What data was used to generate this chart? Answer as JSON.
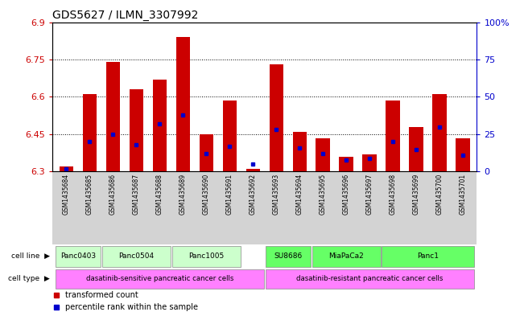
{
  "title": "GDS5627 / ILMN_3307992",
  "samples": [
    "GSM1435684",
    "GSM1435685",
    "GSM1435686",
    "GSM1435687",
    "GSM1435688",
    "GSM1435689",
    "GSM1435690",
    "GSM1435691",
    "GSM1435692",
    "GSM1435693",
    "GSM1435694",
    "GSM1435695",
    "GSM1435696",
    "GSM1435697",
    "GSM1435698",
    "GSM1435699",
    "GSM1435700",
    "GSM1435701"
  ],
  "red_values": [
    6.32,
    6.61,
    6.74,
    6.63,
    6.67,
    6.84,
    6.45,
    6.585,
    6.31,
    6.73,
    6.46,
    6.435,
    6.36,
    6.37,
    6.585,
    6.48,
    6.61,
    6.435
  ],
  "blue_percentiles": [
    2,
    20,
    25,
    18,
    32,
    38,
    12,
    17,
    5,
    28,
    16,
    12,
    8,
    9,
    20,
    15,
    30,
    11
  ],
  "ymin": 6.3,
  "ymax": 6.9,
  "yticks": [
    6.3,
    6.45,
    6.6,
    6.75,
    6.9
  ],
  "ytick_labels": [
    "6.3",
    "6.45",
    "6.6",
    "6.75",
    "6.9"
  ],
  "right_yticks": [
    0,
    25,
    50,
    75,
    100
  ],
  "right_ytick_labels": [
    "0",
    "25",
    "50",
    "75",
    "100%"
  ],
  "cell_line_groups": [
    {
      "label": "Panc0403",
      "start": 0,
      "end": 1,
      "color": "#CCFFCC"
    },
    {
      "label": "Panc0504",
      "start": 2,
      "end": 4,
      "color": "#CCFFCC"
    },
    {
      "label": "Panc1005",
      "start": 5,
      "end": 7,
      "color": "#CCFFCC"
    },
    {
      "label": "SU8686",
      "start": 9,
      "end": 10,
      "color": "#66FF66"
    },
    {
      "label": "MiaPaCa2",
      "start": 11,
      "end": 13,
      "color": "#66FF66"
    },
    {
      "label": "Panc1",
      "start": 14,
      "end": 17,
      "color": "#66FF66"
    }
  ],
  "cell_type_groups": [
    {
      "label": "dasatinib-sensitive pancreatic cancer cells",
      "start": 0,
      "end": 8,
      "color": "#FF80FF"
    },
    {
      "label": "dasatinib-resistant pancreatic cancer cells",
      "start": 9,
      "end": 17,
      "color": "#FF80FF"
    }
  ],
  "bar_color": "#CC0000",
  "blue_marker_color": "#0000CC",
  "bg_color": "#FFFFFF",
  "left_axis_color": "#CC0000",
  "right_axis_color": "#0000CC",
  "sample_label_bg": "#D3D3D3",
  "n_samples": 18
}
